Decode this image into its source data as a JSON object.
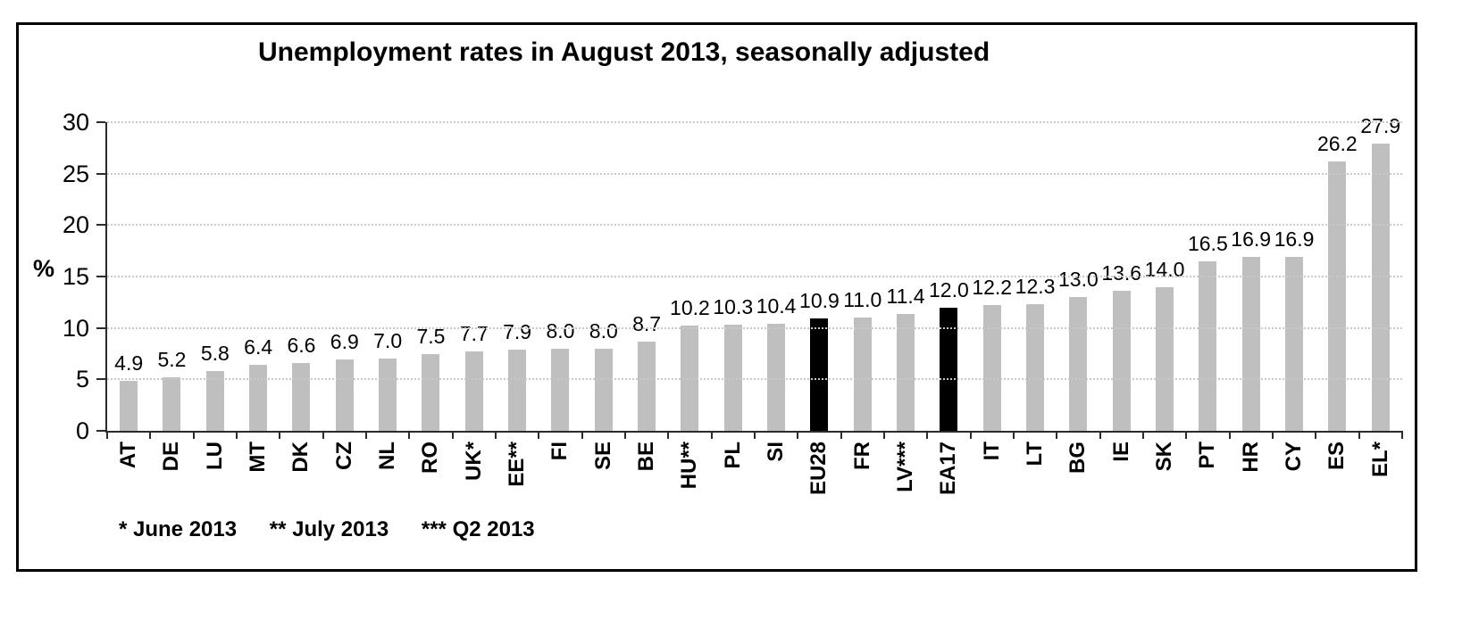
{
  "chart_data": {
    "type": "bar",
    "title": "Unemployment rates in August 2013, seasonally adjusted",
    "ylabel": "%",
    "ylim": [
      0,
      30
    ],
    "yticks": [
      0,
      5,
      10,
      15,
      20,
      25,
      30
    ],
    "grid": "horizontal-dotted",
    "legend": "none",
    "categories": [
      "AT",
      "DE",
      "LU",
      "MT",
      "DK",
      "CZ",
      "NL",
      "RO",
      "UK*",
      "EE**",
      "FI",
      "SE",
      "BE",
      "HU**",
      "PL",
      "SI",
      "EU28",
      "FR",
      "LV***",
      "EA17",
      "IT",
      "LT",
      "BG",
      "IE",
      "SK",
      "PT",
      "HR",
      "CY",
      "ES",
      "EL*"
    ],
    "values": [
      4.9,
      5.2,
      5.8,
      6.4,
      6.6,
      6.9,
      7.0,
      7.5,
      7.7,
      7.9,
      8.0,
      8.0,
      8.7,
      10.2,
      10.3,
      10.4,
      10.9,
      11.0,
      11.4,
      12.0,
      12.2,
      12.3,
      13.0,
      13.6,
      14.0,
      16.5,
      16.9,
      16.9,
      26.2,
      27.9
    ],
    "highlighted_categories": [
      "EU28",
      "EA17"
    ],
    "bar_color": "#BFBFBF",
    "highlight_color": "#000000",
    "footnotes": [
      "* June 2013",
      "** July 2013",
      "*** Q2 2013"
    ]
  }
}
